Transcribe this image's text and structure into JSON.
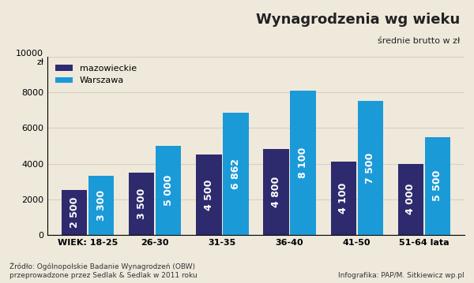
{
  "chart_data": {
    "type": "bar",
    "title": "Wynagrodzenia wg wieku",
    "subtitle": "średnie brutto w zł",
    "source": "Źródło: Ogólnopolskie Badanie Wynagrodzeń (OBW)\nprzeprowadzone przez Sedlak & Sedlak w 2011 roku",
    "credit": "Infografika: PAP/M. Sitkiewicz wp.pl",
    "categories": [
      "WIEK: 18-25",
      "26-30",
      "31-35",
      "36-40",
      "41-50",
      "51-64 lata"
    ],
    "series": [
      {
        "name": "mazowieckie",
        "color": "#2e2a6e",
        "values": [
          2500,
          3500,
          4500,
          4800,
          4100,
          4000
        ],
        "value_labels": [
          "2 500",
          "3 500",
          "4 500",
          "4 800",
          "4 100",
          "4 000"
        ]
      },
      {
        "name": "Warszawa",
        "color": "#1b9ad8",
        "values": [
          3300,
          5000,
          6862,
          8100,
          7500,
          5500
        ],
        "value_labels": [
          "3 300",
          "5 000",
          "6 862",
          "8 100",
          "7 500",
          "5 500"
        ]
      }
    ],
    "ylim": [
      0,
      10000
    ],
    "yticks": [
      0,
      2000,
      4000,
      6000,
      8000,
      {
        "value": 10000,
        "label": "10000\nzł"
      }
    ],
    "grid": true,
    "legend": "upper left",
    "data_labels": true
  }
}
